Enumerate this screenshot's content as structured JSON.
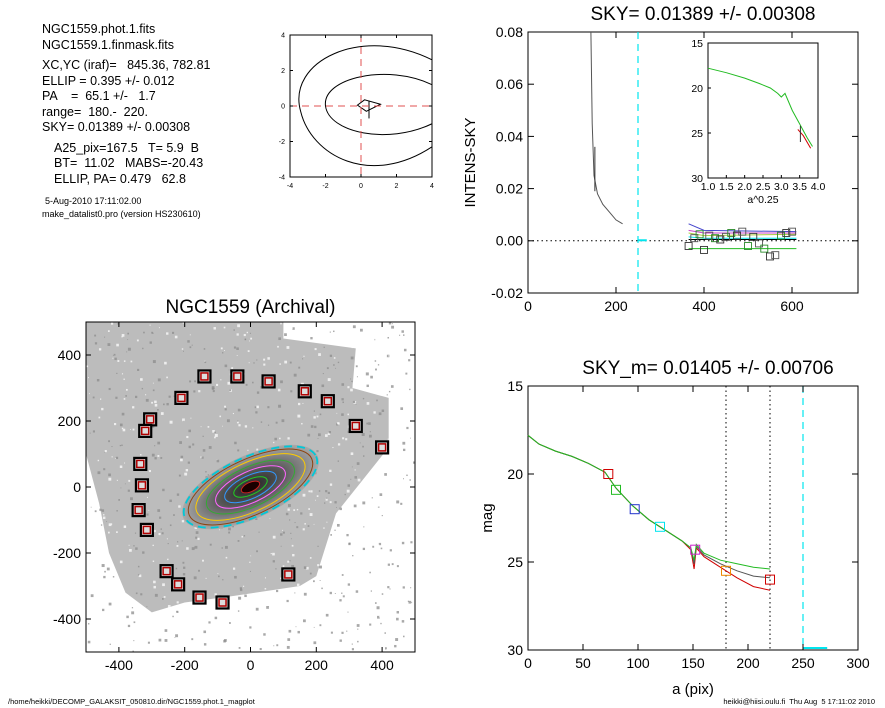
{
  "info": {
    "lines": [
      "NGC1559.phot.1.fits",
      "NGC1559.1.finmask.fits",
      "XC,YC (iraf)=   845.36, 782.81",
      "ELLIP = 0.395 +/- 0.012",
      "PA    =  65.1 +/-   1.7",
      "range=  180.-  220.",
      "SKY= 0.01389 +/- 0.00308",
      "A25_pix=167.5   T= 5.9  B",
      "BT=  11.02   MABS=-20.43",
      "ELLIP, PA= 0.479   62.8"
    ],
    "date": "5-Aug-2010 17:11:02.00",
    "program": "make_datalist0.pro (version HS230610)"
  },
  "footer": {
    "left": "/home/heikki/DECOMP_GALAKSIT_050810.dir/NGC1559.phot.1_magplot",
    "right": "heikki@hiisi.oulu.fi  Thu Aug  5 17:11:02 2010"
  },
  "colors": {
    "cyan": "#00e5ee",
    "red": "#d00000",
    "green": "#22bb22",
    "blue": "#2233cc",
    "magenta": "#cc22cc",
    "orange": "#ee8800"
  },
  "chart_data": [
    {
      "id": "contour",
      "type": "scatter",
      "title": "",
      "xlim": [
        -4,
        4
      ],
      "ylim": [
        -4,
        4
      ],
      "xticks": [
        "-4",
        "-2",
        "0",
        "2",
        "4"
      ],
      "yticks": [
        "-4",
        "-2",
        "0",
        "2",
        "4"
      ]
    },
    {
      "id": "sky",
      "type": "line",
      "title": "SKY= 0.01389 +/- 0.00308",
      "xlabel": "",
      "ylabel": "INTENS-SKY",
      "xlim": [
        0,
        750
      ],
      "ylim": [
        -0.02,
        0.08
      ],
      "xticks": [
        "0",
        "200",
        "400",
        "600"
      ],
      "yticks": [
        "-0.02",
        "0.00",
        "0.02",
        "0.04",
        "0.06",
        "0.08"
      ],
      "profile": {
        "x": [
          143,
          146,
          150,
          158,
          170,
          185,
          200,
          215
        ],
        "y": [
          0.08,
          0.045,
          0.025,
          0.018,
          0.014,
          0.011,
          0.008,
          0.0065
        ]
      },
      "sky_window": [
        250
      ],
      "squares_x": [
        365,
        378,
        390,
        400,
        412,
        425,
        437,
        450,
        462,
        475,
        487,
        500,
        512,
        525,
        537,
        550,
        562,
        575,
        587,
        600
      ],
      "squares_y": [
        -0.002,
        0.001,
        0.0025,
        -0.0035,
        0.002,
        0.001,
        0.0005,
        0.0015,
        0.003,
        0.002,
        0.0035,
        -0.002,
        0.0015,
        -0.001,
        -0.003,
        -0.006,
        -0.0055,
        0.002,
        0.003,
        0.0035
      ],
      "inset": {
        "xlabel": "a^0.25",
        "xlim": [
          1.0,
          4.0
        ],
        "ylim": [
          30,
          15
        ],
        "xticks": [
          "1.0",
          "1.5",
          "2.0",
          "2.5",
          "3.0",
          "3.5",
          "4.0"
        ],
        "yticks": [
          "15",
          "20",
          "25",
          "30"
        ],
        "x": [
          1.0,
          1.5,
          2.0,
          2.4,
          2.7,
          2.9,
          3.0,
          3.1,
          3.3,
          3.5,
          3.7,
          3.85
        ],
        "y": [
          17.8,
          18.3,
          18.9,
          19.5,
          20.0,
          20.6,
          21.0,
          20.6,
          22.5,
          24.0,
          25.5,
          26.5
        ]
      }
    },
    {
      "id": "image",
      "type": "scatter",
      "title": "NGC1559 (Archival)",
      "xlim": [
        -500,
        500
      ],
      "ylim": [
        -500,
        500
      ],
      "xticks": [
        "-400",
        "-200",
        "0",
        "200",
        "400"
      ],
      "yticks": [
        "-400",
        "-200",
        "0",
        "200",
        "400"
      ],
      "ellipse_axes": [
        [
          220,
          90
        ],
        [
          205,
          84
        ],
        [
          180,
          74
        ],
        [
          145,
          60
        ],
        [
          115,
          47
        ],
        [
          85,
          35
        ],
        [
          55,
          23
        ]
      ],
      "sky_boxes": [
        {
          "x": -140,
          "y": 335
        },
        {
          "x": -40,
          "y": 335
        },
        {
          "x": 55,
          "y": 320
        },
        {
          "x": 165,
          "y": 290
        },
        {
          "x": 235,
          "y": 260
        },
        {
          "x": -210,
          "y": 270
        },
        {
          "x": -305,
          "y": 205
        },
        {
          "x": -320,
          "y": 170
        },
        {
          "x": 320,
          "y": 185
        },
        {
          "x": 400,
          "y": 120
        },
        {
          "x": -335,
          "y": 70
        },
        {
          "x": -330,
          "y": 5
        },
        {
          "x": -340,
          "y": -70
        },
        {
          "x": -315,
          "y": -130
        },
        {
          "x": -255,
          "y": -255
        },
        {
          "x": -220,
          "y": -295
        },
        {
          "x": -155,
          "y": -335
        },
        {
          "x": -85,
          "y": -350
        },
        {
          "x": 115,
          "y": -265
        }
      ]
    },
    {
      "id": "mag",
      "type": "line",
      "title": "SKY_m=  0.01405 +/- 0.00706",
      "xlabel": "a (pix)",
      "ylabel": "mag",
      "xlim": [
        0,
        300
      ],
      "ylim": [
        30,
        15
      ],
      "xticks": [
        "0",
        "50",
        "100",
        "150",
        "200",
        "250",
        "300"
      ],
      "yticks": [
        "15",
        "20",
        "25",
        "30"
      ],
      "vlines": [
        180,
        220
      ],
      "sky_mark": 250,
      "series": [
        {
          "x": [
            0,
            10,
            25,
            40,
            55,
            70,
            80,
            95,
            110,
            125,
            140,
            148,
            151,
            153,
            160,
            175,
            190,
            205,
            220
          ],
          "y": [
            17.8,
            18.3,
            18.7,
            19.0,
            19.4,
            19.9,
            20.8,
            21.8,
            22.6,
            23.2,
            23.8,
            24.3,
            25.4,
            24.2,
            24.7,
            25.3,
            25.9,
            26.4,
            26.6
          ]
        },
        {
          "x": [
            0,
            10,
            25,
            40,
            55,
            70,
            80,
            95,
            110,
            125,
            140,
            148,
            151,
            153,
            160,
            175,
            190,
            205,
            220
          ],
          "y": [
            17.8,
            18.3,
            18.7,
            19.0,
            19.4,
            19.9,
            20.8,
            21.8,
            22.6,
            23.2,
            23.8,
            24.2,
            25.1,
            24.1,
            24.6,
            25.1,
            25.5,
            25.8,
            25.9
          ]
        },
        {
          "x": [
            0,
            10,
            25,
            40,
            55,
            70,
            80,
            95,
            110,
            125,
            140,
            148,
            151,
            153,
            160,
            175,
            190,
            205,
            220
          ],
          "y": [
            17.8,
            18.3,
            18.7,
            19.0,
            19.4,
            19.9,
            20.8,
            21.8,
            22.6,
            23.2,
            23.8,
            24.2,
            24.9,
            24.0,
            24.5,
            24.9,
            25.1,
            25.3,
            25.4
          ]
        }
      ],
      "markers": [
        {
          "x": 73,
          "y": 20.0,
          "c": "red"
        },
        {
          "x": 80,
          "y": 20.9,
          "c": "green"
        },
        {
          "x": 97,
          "y": 22.0,
          "c": "blue"
        },
        {
          "x": 120,
          "y": 23.0,
          "c": "cyan"
        },
        {
          "x": 152,
          "y": 24.3,
          "c": "magenta"
        },
        {
          "x": 180,
          "y": 25.5,
          "c": "orange"
        },
        {
          "x": 220,
          "y": 26.0,
          "c": "red"
        }
      ]
    }
  ]
}
